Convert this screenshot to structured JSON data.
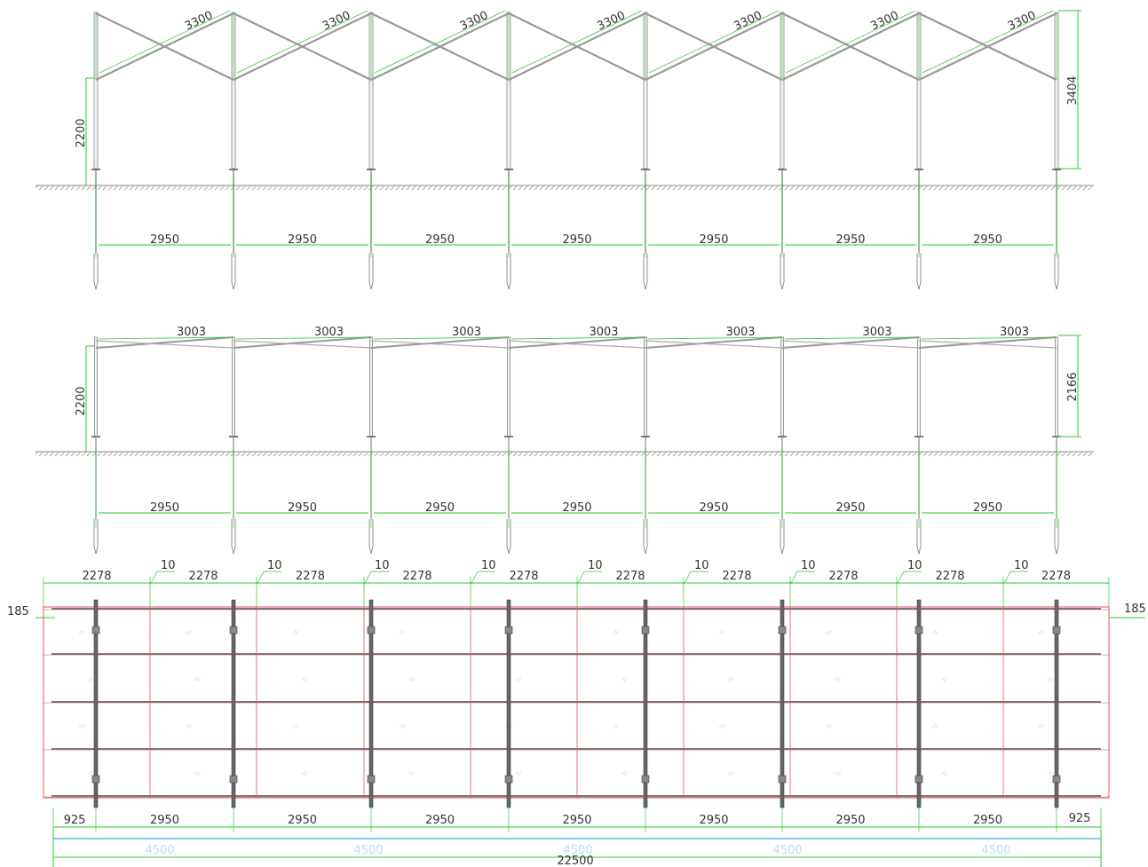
{
  "top_view": {
    "post_height": "2200",
    "total_height": "3404",
    "rafter_lengths": [
      "3300",
      "3300",
      "3300",
      "3300",
      "3300",
      "3300",
      "3300"
    ],
    "post_spacings": [
      "2950",
      "2950",
      "2950",
      "2950",
      "2950",
      "2950",
      "2950"
    ]
  },
  "side_view": {
    "post_height": "2200",
    "total_height": "2166",
    "rafter_lengths": [
      "3003",
      "3003",
      "3003",
      "3003",
      "3003",
      "3003",
      "3003"
    ],
    "post_spacings": [
      "2950",
      "2950",
      "2950",
      "2950",
      "2950",
      "2950",
      "2950"
    ]
  },
  "plan_view": {
    "panel_widths": [
      "2278",
      "2278",
      "2278",
      "2278",
      "2278",
      "2278",
      "2278",
      "2278",
      "2278",
      "2278"
    ],
    "gaps": [
      "10",
      "10",
      "10",
      "10",
      "10",
      "10",
      "10",
      "10",
      "10"
    ],
    "edge_offset_left": "185",
    "edge_offset_right": "185",
    "end_offset_left": "925",
    "end_offset_right": "925",
    "post_spacings": [
      "2950",
      "2950",
      "2950",
      "2950",
      "2950",
      "2950",
      "2950"
    ],
    "module_lengths": [
      "4500",
      "4500",
      "4500",
      "4500",
      "4500"
    ],
    "total_length": "22500"
  },
  "colors": {
    "structure": "#888888",
    "dimension": "#2ec82e",
    "panel_grid": "#e05560",
    "ground": "#999999",
    "total_line": "#7fd0f0"
  }
}
